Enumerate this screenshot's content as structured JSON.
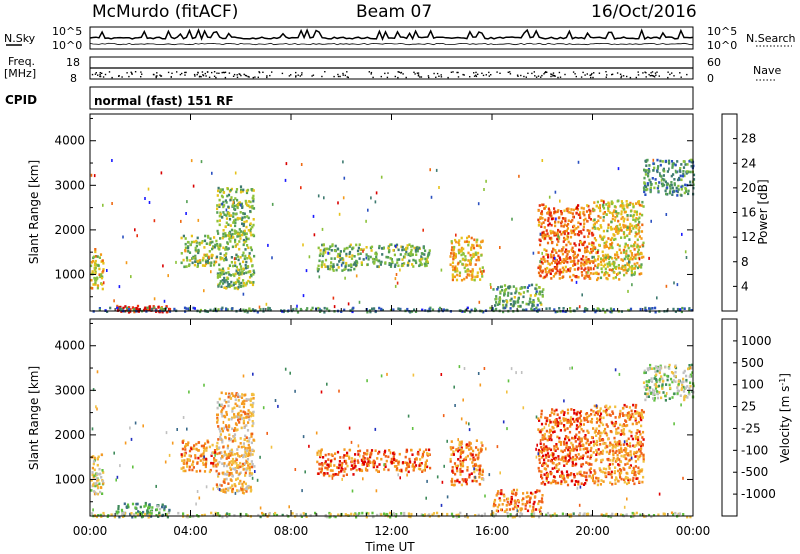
{
  "header": {
    "station": "McMurdo (fitACF)",
    "beam": "Beam 07",
    "date": "16/Oct/2016"
  },
  "top_panels": {
    "nsky_label": "N.Sky",
    "nsearch_label": "N.Search",
    "noise_ticks": [
      "10^5",
      "10^0"
    ],
    "freq_label_1": "Freq.",
    "freq_label_2": "[MHz]",
    "freq_ticks": [
      "18",
      "8"
    ],
    "nave_label": "Nave",
    "nave_ticks": [
      "60",
      "0"
    ],
    "cpid_label": "CPID",
    "cpid_value": "normal (fast) 151 RF"
  },
  "chart_data": [
    {
      "type": "heatmap",
      "name": "power",
      "ylabel": "Slant Range [km]",
      "ylim": [
        180,
        4600
      ],
      "yticks": [
        "1000",
        "2000",
        "3000",
        "4000"
      ],
      "colorbar_label": "Power [dB]",
      "colorbar_ticks": [
        "28",
        "24",
        "20",
        "16",
        "12",
        "8",
        "4"
      ],
      "colors": [
        "#1a1aff",
        "#2a50c0",
        "#3e7a70",
        "#55a055",
        "#8cc23a",
        "#e6c21a",
        "#f39a1a",
        "#ee6a12",
        "#e8300f",
        "#d80000"
      ],
      "scatter_regions": [
        {
          "t": [
            0.0,
            0.5
          ],
          "r": [
            700,
            1600
          ],
          "level": 0.55
        },
        {
          "t": [
            1.0,
            3.2
          ],
          "r": [
            180,
            320
          ],
          "level": 0.95
        },
        {
          "t": [
            3.6,
            5.0
          ],
          "r": [
            1200,
            1900
          ],
          "level": 0.45
        },
        {
          "t": [
            5.0,
            6.5
          ],
          "r": [
            700,
            3000
          ],
          "level": 0.4
        },
        {
          "t": [
            9.0,
            10.5
          ],
          "r": [
            1100,
            1700
          ],
          "level": 0.4
        },
        {
          "t": [
            10.5,
            13.5
          ],
          "r": [
            1200,
            1700
          ],
          "level": 0.4
        },
        {
          "t": [
            14.3,
            15.6
          ],
          "r": [
            900,
            1900
          ],
          "level": 0.6
        },
        {
          "t": [
            16.0,
            18.0
          ],
          "r": [
            300,
            800
          ],
          "level": 0.35
        },
        {
          "t": [
            17.8,
            20.0
          ],
          "r": [
            900,
            2600
          ],
          "level": 0.75
        },
        {
          "t": [
            20.0,
            22.0
          ],
          "r": [
            900,
            2700
          ],
          "level": 0.55
        },
        {
          "t": [
            22.0,
            24.0
          ],
          "r": [
            2800,
            3600
          ],
          "level": 0.3
        },
        {
          "t": [
            0.0,
            24.0
          ],
          "r": [
            180,
            280
          ],
          "level": 0.25
        }
      ]
    },
    {
      "type": "heatmap",
      "name": "velocity",
      "ylabel": "Slant Range [km]",
      "ylim": [
        180,
        4600
      ],
      "yticks": [
        "1000",
        "2000",
        "3000",
        "4000"
      ],
      "colorbar_label": "Velocity [m s",
      "colorbar_exp": "-1",
      "colorbar_ticks": [
        "1000",
        "500",
        "100",
        "25",
        "-25",
        "-100",
        "-500",
        "-1000"
      ],
      "colors": [
        "#2030c0",
        "#3a6a8a",
        "#3e8a5a",
        "#60c040",
        "#c0c0c0",
        "#f2c040",
        "#f59a20",
        "#f06018",
        "#e00000"
      ],
      "scatter_regions": [
        {
          "t": [
            0.0,
            0.5
          ],
          "r": [
            700,
            1600
          ],
          "level": 0.55
        },
        {
          "t": [
            1.0,
            3.2
          ],
          "r": [
            180,
            500
          ],
          "level": 0.3
        },
        {
          "t": [
            3.6,
            5.0
          ],
          "r": [
            1200,
            1900
          ],
          "level": 0.75
        },
        {
          "t": [
            5.0,
            6.5
          ],
          "r": [
            700,
            3000
          ],
          "level": 0.65
        },
        {
          "t": [
            9.0,
            10.5
          ],
          "r": [
            1100,
            1700
          ],
          "level": 0.8
        },
        {
          "t": [
            10.5,
            13.5
          ],
          "r": [
            1200,
            1700
          ],
          "level": 0.8
        },
        {
          "t": [
            14.3,
            15.6
          ],
          "r": [
            900,
            1900
          ],
          "level": 0.78
        },
        {
          "t": [
            16.0,
            18.0
          ],
          "r": [
            300,
            800
          ],
          "level": 0.78
        },
        {
          "t": [
            17.8,
            20.0
          ],
          "r": [
            900,
            2600
          ],
          "level": 0.82
        },
        {
          "t": [
            20.0,
            22.0
          ],
          "r": [
            900,
            2700
          ],
          "level": 0.75
        },
        {
          "t": [
            22.0,
            24.0
          ],
          "r": [
            2800,
            3600
          ],
          "level": 0.45
        },
        {
          "t": [
            0.0,
            24.0
          ],
          "r": [
            180,
            280
          ],
          "level": 0.5
        }
      ]
    }
  ],
  "xaxis": {
    "ticks": [
      "00:00",
      "04:00",
      "08:00",
      "12:00",
      "16:00",
      "20:00",
      "00:00"
    ],
    "label": "Time UT",
    "xlim": [
      0,
      24
    ]
  }
}
